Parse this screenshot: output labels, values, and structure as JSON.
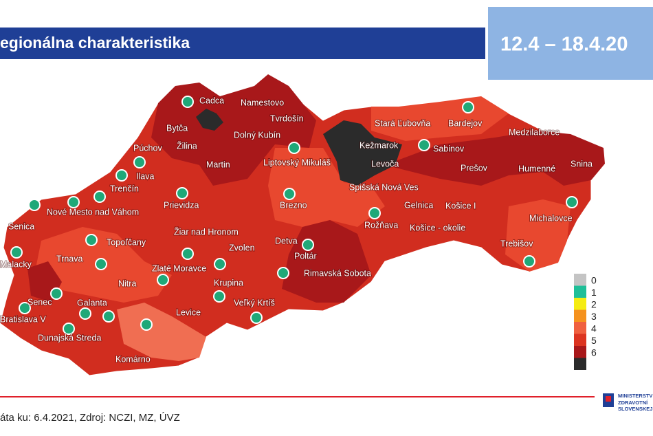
{
  "header": {
    "title": "egionálna charakteristika",
    "period": "12.4 – 18.4.20"
  },
  "map": {
    "districts": [
      "Cadca",
      "Namestovo",
      "Tvrdošín",
      "Bytča",
      "Žilina",
      "Dolný Kubín",
      "Púchov",
      "Ilava",
      "Martin",
      "Liptovský Mikuláš",
      "Trenčín",
      "Prievidza",
      "Nové Mesto nad Váhom",
      "Senica",
      "Brezno",
      "Stará Ľubovňa",
      "Bardejov",
      "Kežmarok",
      "Sabinov",
      "Medzilaborce",
      "Levoča",
      "Prešov",
      "Humenné",
      "Snina",
      "Spišská Nová Ves",
      "Gelnica",
      "Košice I",
      "Rožňava",
      "Košice - okolie",
      "Michalovce",
      "Žiar nad Hronom",
      "Topoľčany",
      "Detva",
      "Zvolen",
      "Poltár",
      "Malacky",
      "Trnava",
      "Zlaté Moravce",
      "Rimavská Sobota",
      "Trebišov",
      "Nitra",
      "Krupina",
      "Senec",
      "Galanta",
      "Veľký Krtíš",
      "Levice",
      "Bratislava V",
      "Dunajská Streda",
      "Komárno"
    ]
  },
  "legend": {
    "levels": [
      0,
      1,
      2,
      3,
      4,
      5,
      6
    ],
    "colors": [
      "#c4c4c4",
      "#1fbf98",
      "#f5ec12",
      "#f5921e",
      "#f0603f",
      "#dc3420",
      "#a8181a",
      "#2b2b2b"
    ]
  },
  "footer": {
    "source": "áta ku: 6.4.2021, Zdroj: NCZI, MZ, ÚVZ",
    "logo": [
      "MINISTERSTV",
      "ZDRAVOTNÍ",
      "SLOVENSKEJ"
    ]
  }
}
